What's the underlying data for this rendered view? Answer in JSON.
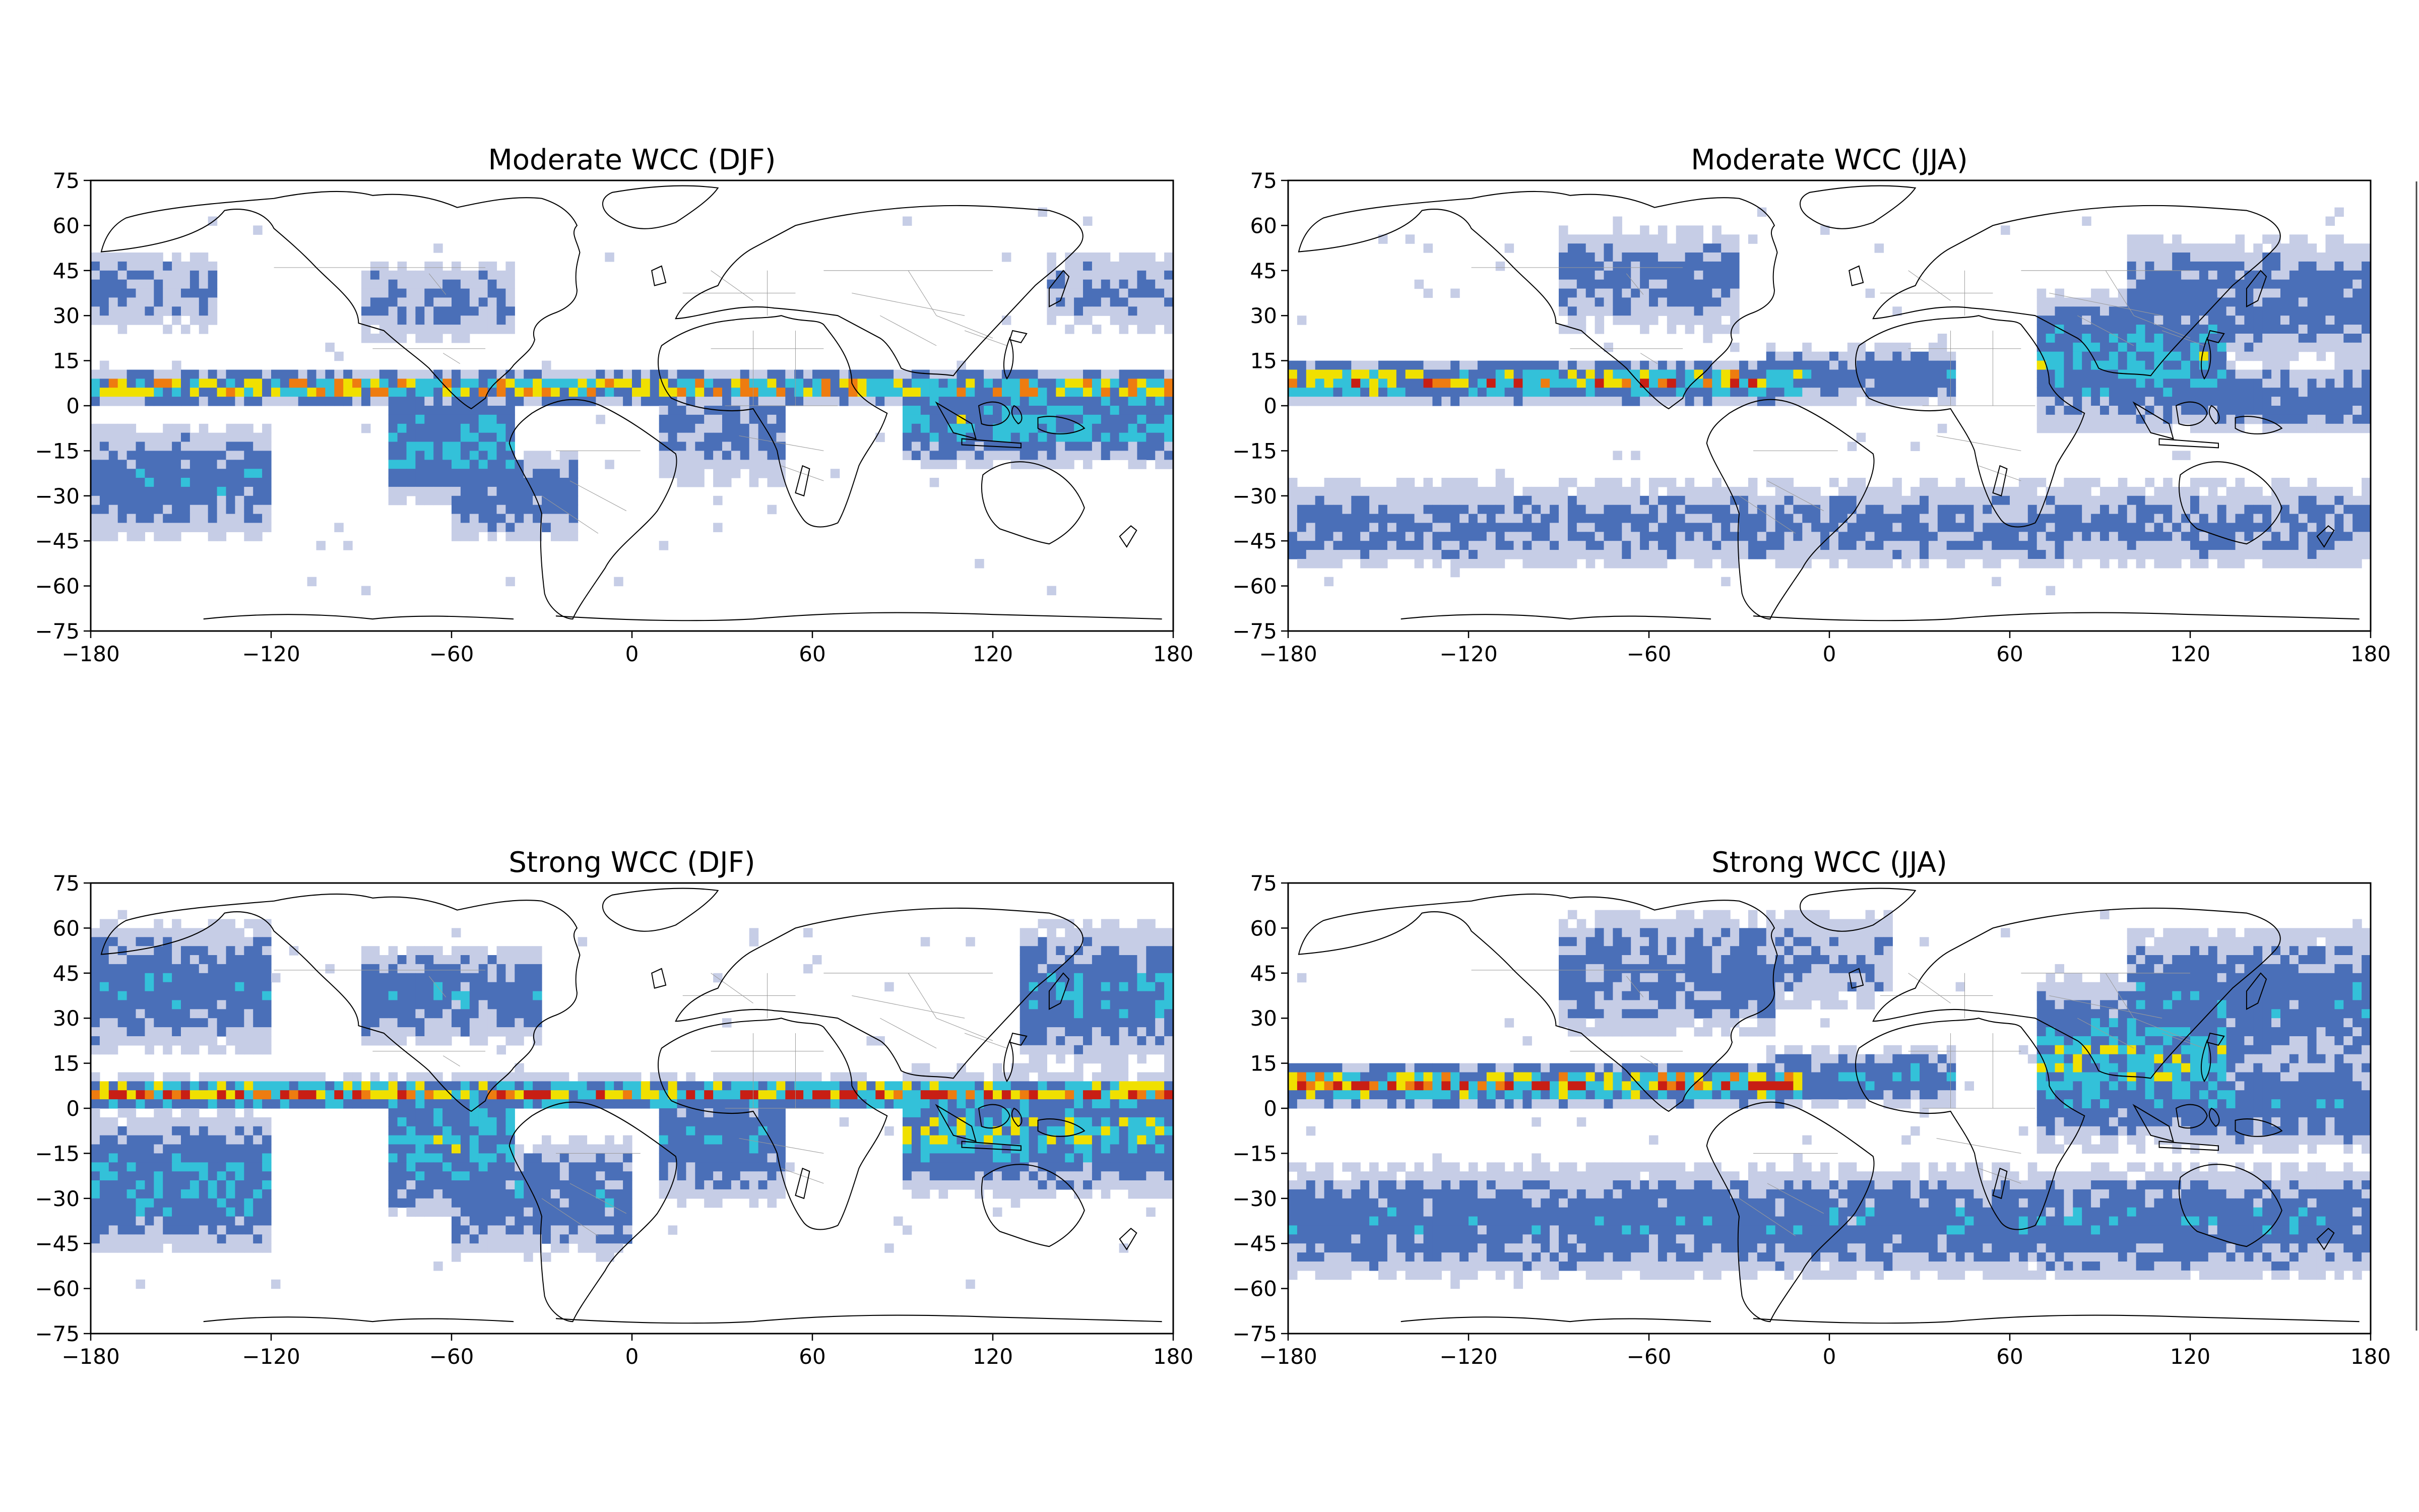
{
  "figure": {
    "panels": [
      {
        "title": "Moderate WCC (DJF)",
        "key": "mod_djf"
      },
      {
        "title": "Moderate WCC (JJA)",
        "key": "mod_jja"
      },
      {
        "title": "Strong WCC (DJF)",
        "key": "str_djf"
      },
      {
        "title": "Strong WCC (JJA)",
        "key": "str_jja"
      }
    ]
  },
  "chart_data": [
    {
      "type": "heatmap",
      "title": "Moderate WCC (DJF)",
      "xlabel": "",
      "ylabel": "",
      "xlim": [
        -180,
        180
      ],
      "ylim": [
        -75,
        75
      ],
      "xticks": [
        "-180",
        "-120",
        "-60",
        "0",
        "60",
        "120",
        "180"
      ],
      "yticks": [
        "75",
        "60",
        "45",
        "30",
        "15",
        "0",
        "-15",
        "-30",
        "-45",
        "-60",
        "-75"
      ],
      "grid": false,
      "basemap": "coastlines and country borders",
      "colormap": [
        "#c6cde6",
        "#4a6fb8",
        "#33c1d9",
        "#f0e000",
        "#ee7c10",
        "#c81e14"
      ],
      "bands": [
        {
          "lat": 6,
          "width": 3,
          "lon_min": -180,
          "lon_max": 180,
          "intensity": 0.85
        },
        {
          "lat": -5,
          "width": 9,
          "lon_min": 90,
          "lon_max": 180,
          "intensity": 0.6
        },
        {
          "lat": -12,
          "width": 12,
          "lon_min": -80,
          "lon_max": -40,
          "intensity": 0.55
        },
        {
          "lat": -8,
          "width": 12,
          "lon_min": 10,
          "lon_max": 50,
          "intensity": 0.35
        },
        {
          "lat": -30,
          "width": 10,
          "lon_min": -60,
          "lon_max": -20,
          "intensity": 0.4
        },
        {
          "lat": -25,
          "width": 12,
          "lon_min": -180,
          "lon_max": -120,
          "intensity": 0.45
        },
        {
          "lat": 38,
          "width": 10,
          "lon_min": -180,
          "lon_max": -140,
          "intensity": 0.3
        },
        {
          "lat": 35,
          "width": 10,
          "lon_min": -90,
          "lon_max": -40,
          "intensity": 0.3
        },
        {
          "lat": 38,
          "width": 10,
          "lon_min": 140,
          "lon_max": 180,
          "intensity": 0.3
        }
      ]
    },
    {
      "type": "heatmap",
      "title": "Moderate WCC (JJA)",
      "xlabel": "",
      "ylabel": "",
      "xlim": [
        -180,
        180
      ],
      "ylim": [
        -75,
        75
      ],
      "xticks": [
        "-180",
        "-120",
        "-60",
        "0",
        "60",
        "120",
        "180"
      ],
      "yticks": [
        "75",
        "60",
        "45",
        "30",
        "15",
        "0",
        "-15",
        "-30",
        "-45",
        "-60",
        "-75"
      ],
      "grid": false,
      "basemap": "coastlines and country borders",
      "colormap": [
        "#c6cde6",
        "#4a6fb8",
        "#33c1d9",
        "#f0e000",
        "#ee7c10",
        "#c81e14"
      ],
      "bands": [
        {
          "lat": 8,
          "width": 4,
          "lon_min": -180,
          "lon_max": -10,
          "intensity": 0.85
        },
        {
          "lat": 10,
          "width": 6,
          "lon_min": -20,
          "lon_max": 40,
          "intensity": 0.45
        },
        {
          "lat": 15,
          "width": 14,
          "lon_min": 70,
          "lon_max": 130,
          "intensity": 0.6
        },
        {
          "lat": 35,
          "width": 14,
          "lon_min": 100,
          "lon_max": 180,
          "intensity": 0.4
        },
        {
          "lat": 42,
          "width": 12,
          "lon_min": -90,
          "lon_max": -30,
          "intensity": 0.35
        },
        {
          "lat": -40,
          "width": 10,
          "lon_min": -180,
          "lon_max": 180,
          "intensity": 0.35
        },
        {
          "lat": 2,
          "width": 8,
          "lon_min": 130,
          "lon_max": 180,
          "intensity": 0.4
        }
      ]
    },
    {
      "type": "heatmap",
      "title": "Strong WCC (DJF)",
      "xlabel": "",
      "ylabel": "",
      "xlim": [
        -180,
        180
      ],
      "ylim": [
        -75,
        75
      ],
      "xticks": [
        "-180",
        "-120",
        "-60",
        "0",
        "60",
        "120",
        "180"
      ],
      "yticks": [
        "75",
        "60",
        "45",
        "30",
        "15",
        "0",
        "-15",
        "-30",
        "-45",
        "-60",
        "-75"
      ],
      "grid": false,
      "basemap": "coastlines and country borders",
      "colormap": [
        "#c6cde6",
        "#4a6fb8",
        "#33c1d9",
        "#f0e000",
        "#ee7c10",
        "#c81e14"
      ],
      "bands": [
        {
          "lat": 5,
          "width": 3,
          "lon_min": -180,
          "lon_max": 180,
          "intensity": 0.95
        },
        {
          "lat": -8,
          "width": 12,
          "lon_min": 90,
          "lon_max": 180,
          "intensity": 0.65
        },
        {
          "lat": -12,
          "width": 14,
          "lon_min": -80,
          "lon_max": -40,
          "intensity": 0.6
        },
        {
          "lat": -10,
          "width": 14,
          "lon_min": 10,
          "lon_max": 50,
          "intensity": 0.45
        },
        {
          "lat": -30,
          "width": 12,
          "lon_min": -60,
          "lon_max": 0,
          "intensity": 0.45
        },
        {
          "lat": -25,
          "width": 14,
          "lon_min": -180,
          "lon_max": -120,
          "intensity": 0.55
        },
        {
          "lat": 40,
          "width": 14,
          "lon_min": -180,
          "lon_max": -120,
          "intensity": 0.45
        },
        {
          "lat": 38,
          "width": 10,
          "lon_min": -90,
          "lon_max": -30,
          "intensity": 0.45
        },
        {
          "lat": 38,
          "width": 14,
          "lon_min": 130,
          "lon_max": 180,
          "intensity": 0.5
        }
      ]
    },
    {
      "type": "heatmap",
      "title": "Strong WCC (JJA)",
      "xlabel": "",
      "ylabel": "",
      "xlim": [
        -180,
        180
      ],
      "ylim": [
        -75,
        75
      ],
      "xticks": [
        "-180",
        "-120",
        "-60",
        "0",
        "60",
        "120",
        "180"
      ],
      "yticks": [
        "75",
        "60",
        "45",
        "30",
        "15",
        "0",
        "-15",
        "-30",
        "-45",
        "-60",
        "-75"
      ],
      "grid": false,
      "basemap": "coastlines and country borders",
      "colormap": [
        "#c6cde6",
        "#4a6fb8",
        "#33c1d9",
        "#f0e000",
        "#ee7c10",
        "#c81e14"
      ],
      "bands": [
        {
          "lat": 8,
          "width": 4,
          "lon_min": -180,
          "lon_max": -10,
          "intensity": 0.9
        },
        {
          "lat": 10,
          "width": 6,
          "lon_min": -20,
          "lon_max": 40,
          "intensity": 0.5
        },
        {
          "lat": 15,
          "width": 16,
          "lon_min": 70,
          "lon_max": 130,
          "intensity": 0.65
        },
        {
          "lat": 35,
          "width": 16,
          "lon_min": 100,
          "lon_max": 180,
          "intensity": 0.45
        },
        {
          "lat": 45,
          "width": 14,
          "lon_min": -90,
          "lon_max": -20,
          "intensity": 0.4
        },
        {
          "lat": 50,
          "width": 12,
          "lon_min": -40,
          "lon_max": 20,
          "intensity": 0.3
        },
        {
          "lat": -38,
          "width": 12,
          "lon_min": -180,
          "lon_max": 180,
          "intensity": 0.45
        },
        {
          "lat": 2,
          "width": 10,
          "lon_min": 120,
          "lon_max": 180,
          "intensity": 0.45
        }
      ]
    }
  ]
}
